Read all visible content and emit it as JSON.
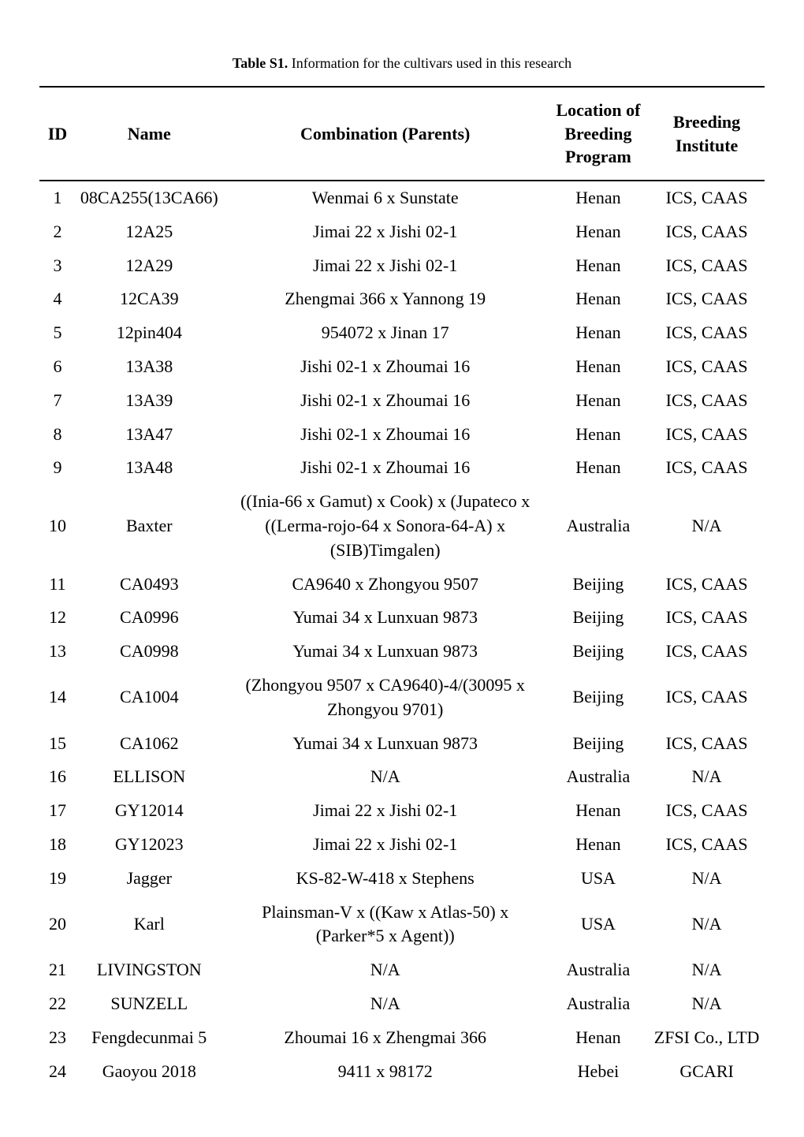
{
  "caption": {
    "label": "Table S1.",
    "text": "Information for the cultivars used in this research"
  },
  "columns": {
    "id": "ID",
    "name": "Name",
    "comb": "Combination (Parents)",
    "loc_line1": "Location of",
    "loc_line2": "Breeding",
    "loc_line3": "Program",
    "inst_line1": "Breeding",
    "inst_line2": "Institute"
  },
  "rows": [
    {
      "id": "1",
      "name": "08CA255(13CA66)",
      "comb": "Wenmai 6 x Sunstate",
      "loc": "Henan",
      "inst": "ICS, CAAS"
    },
    {
      "id": "2",
      "name": "12A25",
      "comb": "Jimai 22 x Jishi 02-1",
      "loc": "Henan",
      "inst": "ICS, CAAS"
    },
    {
      "id": "3",
      "name": "12A29",
      "comb": "Jimai 22 x Jishi 02-1",
      "loc": "Henan",
      "inst": "ICS, CAAS"
    },
    {
      "id": "4",
      "name": "12CA39",
      "comb": "Zhengmai 366 x Yannong 19",
      "loc": "Henan",
      "inst": "ICS, CAAS"
    },
    {
      "id": "5",
      "name": "12pin404",
      "comb": "954072 x Jinan 17",
      "loc": "Henan",
      "inst": "ICS, CAAS"
    },
    {
      "id": "6",
      "name": "13A38",
      "comb": "Jishi 02-1 x Zhoumai 16",
      "loc": "Henan",
      "inst": "ICS, CAAS"
    },
    {
      "id": "7",
      "name": "13A39",
      "comb": "Jishi 02-1 x Zhoumai 16",
      "loc": "Henan",
      "inst": "ICS, CAAS"
    },
    {
      "id": "8",
      "name": "13A47",
      "comb": "Jishi 02-1 x Zhoumai 16",
      "loc": "Henan",
      "inst": "ICS, CAAS"
    },
    {
      "id": "9",
      "name": "13A48",
      "comb": "Jishi 02-1 x Zhoumai 16",
      "loc": "Henan",
      "inst": "ICS, CAAS"
    },
    {
      "id": "10",
      "name": "Baxter",
      "comb": "((Inia-66 x Gamut) x Cook) x (Jupateco x ((Lerma-rojo-64 x Sonora-64-A) x (SIB)Timgalen)",
      "loc": "Australia",
      "inst": "N/A"
    },
    {
      "id": "11",
      "name": "CA0493",
      "comb": "CA9640 x Zhongyou 9507",
      "loc": "Beijing",
      "inst": "ICS, CAAS"
    },
    {
      "id": "12",
      "name": "CA0996",
      "comb": "Yumai 34 x Lunxuan 9873",
      "loc": "Beijing",
      "inst": "ICS, CAAS"
    },
    {
      "id": "13",
      "name": "CA0998",
      "comb": "Yumai 34 x Lunxuan 9873",
      "loc": "Beijing",
      "inst": "ICS, CAAS"
    },
    {
      "id": "14",
      "name": "CA1004",
      "comb": "(Zhongyou 9507 x CA9640)-4/(30095 x Zhongyou 9701)",
      "loc": "Beijing",
      "inst": "ICS, CAAS"
    },
    {
      "id": "15",
      "name": "CA1062",
      "comb": "Yumai 34 x Lunxuan 9873",
      "loc": "Beijing",
      "inst": "ICS, CAAS"
    },
    {
      "id": "16",
      "name": "ELLISON",
      "comb": "N/A",
      "loc": "Australia",
      "inst": "N/A"
    },
    {
      "id": "17",
      "name": "GY12014",
      "comb": "Jimai 22 x Jishi 02-1",
      "loc": "Henan",
      "inst": "ICS, CAAS"
    },
    {
      "id": "18",
      "name": "GY12023",
      "comb": "Jimai 22 x Jishi 02-1",
      "loc": "Henan",
      "inst": "ICS, CAAS"
    },
    {
      "id": "19",
      "name": "Jagger",
      "comb": "KS-82-W-418 x Stephens",
      "loc": "USA",
      "inst": "N/A"
    },
    {
      "id": "20",
      "name": "Karl",
      "comb": "Plainsman-V x ((Kaw x Atlas-50) x (Parker*5 x Agent))",
      "loc": "USA",
      "inst": "N/A"
    },
    {
      "id": "21",
      "name": "LIVINGSTON",
      "comb": "N/A",
      "loc": "Australia",
      "inst": "N/A"
    },
    {
      "id": "22",
      "name": "SUNZELL",
      "comb": "N/A",
      "loc": "Australia",
      "inst": "N/A"
    },
    {
      "id": "23",
      "name": "Fengdecunmai 5",
      "comb": "Zhoumai 16 x Zhengmai 366",
      "loc": "Henan",
      "inst": "ZFSI Co., LTD"
    },
    {
      "id": "24",
      "name": "Gaoyou 2018",
      "comb": "9411 x 98172",
      "loc": "Hebei",
      "inst": "GCARI"
    }
  ]
}
